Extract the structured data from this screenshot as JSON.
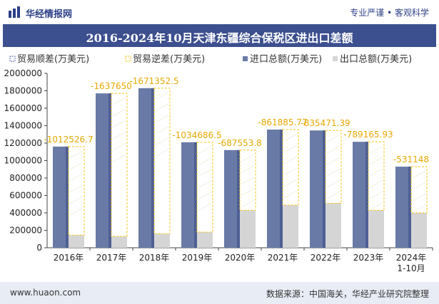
{
  "header": {
    "brand": "华经情报网",
    "tagline": "专业严谨 • 客观科学"
  },
  "chart_data": {
    "type": "bar",
    "title": "2016-2024年10月天津东疆综合保税区进出口差额",
    "categories": [
      "2016年",
      "2017年",
      "2018年",
      "2019年",
      "2020年",
      "2021年",
      "2022年",
      "2023年",
      "2024年\n1-10月"
    ],
    "series": [
      {
        "name": "贸易顺差(万美元)",
        "values": [
          null,
          null,
          null,
          null,
          null,
          null,
          null,
          null,
          null
        ],
        "color": "#5b6fa8"
      },
      {
        "name": "贸易逆差(万美元)",
        "values": [
          -1012526.7,
          -1637650,
          -1671352.5,
          -1034686.5,
          -687553.8,
          -861885.77,
          -835471.39,
          -789165.93,
          -531148
        ],
        "color": "#f5c518"
      },
      {
        "name": "进口总额(万美元)",
        "values": [
          1160000,
          1770000,
          1830000,
          1210000,
          1120000,
          1355000,
          1345000,
          1215000,
          930000
        ],
        "color": "#6a7aa6"
      },
      {
        "name": "出口总额(万美元)",
        "values": [
          145000,
          130000,
          160000,
          180000,
          430000,
          490000,
          510000,
          430000,
          400000
        ],
        "color": "#d5d5d5"
      }
    ],
    "data_labels": [
      "-1012526.7",
      "-1637650",
      "-1671352.5",
      "-1034686.5",
      "-687553.8",
      "-861885.77",
      "-835471.39",
      "-789165.93",
      "-531148"
    ],
    "ylim": [
      0,
      2000000
    ],
    "yticks": [
      0,
      200000,
      400000,
      600000,
      800000,
      1000000,
      1200000,
      1400000,
      1600000,
      1800000,
      2000000
    ],
    "legend_position": "top",
    "grid": false
  },
  "footer": {
    "site": "www.huaon.com",
    "source": "数据来源：中国海关，华经产业研究院整理"
  }
}
